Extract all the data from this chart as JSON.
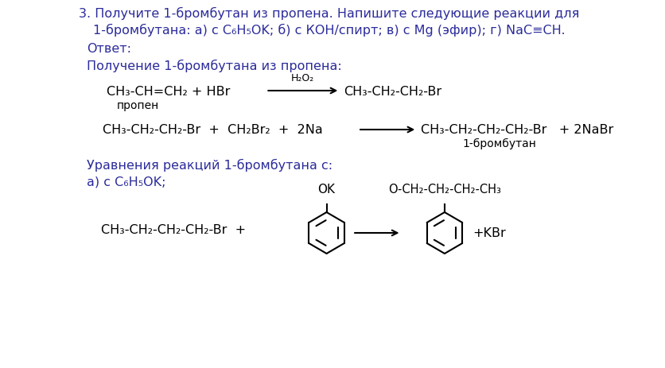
{
  "bg_color": "#ffffff",
  "text_color": "#2b2b9b",
  "formula_color": "#000000",
  "title_line1": "3. Получите 1-бромбутан из пропена. Напишите следующие реакции для",
  "title_line2": "1-бромбутана: а) с C₆H₅OK; б) с КОН/спирт; в) с Mg (эфир); г) NaC≡CH.",
  "answer_label": "Ответ:",
  "section1_label": "Получение 1-бромбутана из пропена:",
  "reaction1_left": "CH₃-CH=CH₂ + HBr",
  "reaction1_above": "H₂O₂",
  "reaction1_right": "CH₃-CH₂-CH₂-Br",
  "reaction1_below_left": "пропен",
  "reaction2_left": "CH₃-CH₂-CH₂-Br  +  CH₂Br₂  +  2Na",
  "reaction2_right": "CH₃-CH₂-CH₂-CH₂-Br   + 2NaBr",
  "reaction2_below_right": "1-бромбутан",
  "section2_label": "Уравнения реакций 1-бромбутана с:",
  "section2a_label": "а) с C₆H₅OK;",
  "reaction3_left": "CH₃-CH₂-CH₂-CH₂-Br  +",
  "reaction3_right": "+KBr",
  "phenol_ok_label": "OK",
  "product_label": "O-CH₂-CH₂-CH₂-CH₃"
}
